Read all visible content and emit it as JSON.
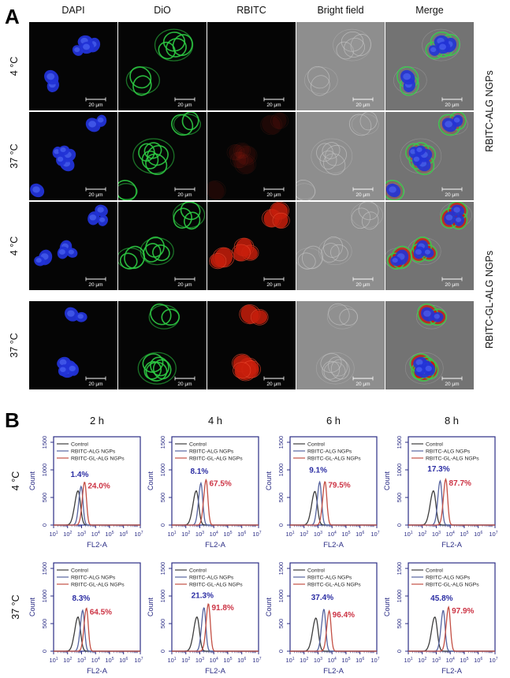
{
  "panelA": {
    "label": "A",
    "column_headers": [
      "DAPI",
      "DiO",
      "RBITC",
      "Bright field",
      "Merge"
    ],
    "row_labels": [
      "4 °C",
      "37 °C",
      "4 °C",
      "37 °C"
    ],
    "group_labels": [
      "RBITC-ALG NGPs",
      "RBITC-GL-ALG NGPs"
    ],
    "scale_bar_label": "20 μm",
    "channels": [
      "dapi",
      "dio",
      "rbitc",
      "brightfield",
      "merge"
    ],
    "rows": [
      {
        "temperature": "4 °C",
        "group": "RBITC-ALG NGPs",
        "rbitc_signal": "none"
      },
      {
        "temperature": "37 °C",
        "group": "RBITC-ALG NGPs",
        "rbitc_signal": "faint"
      },
      {
        "temperature": "4 °C",
        "group": "RBITC-GL-ALG NGPs",
        "rbitc_signal": "strong"
      },
      {
        "temperature": "37 °C",
        "group": "RBITC-GL-ALG NGPs",
        "rbitc_signal": "strong"
      }
    ],
    "colors": {
      "dapi": "#2233d6",
      "dapi_inner": "#5b74ff",
      "dio": "#2ecc44",
      "rbitc": "#c81e0c",
      "rbitc_edge": "#e8442a",
      "dark_bg": "#050505",
      "brightfield_bg": "#8e8e8e",
      "merge_bg": "#737373",
      "scale_bar": "#ffffff"
    }
  },
  "panelB": {
    "label": "B",
    "time_labels": [
      "2 h",
      "4 h",
      "6 h",
      "8 h"
    ],
    "row_labels": [
      "4 °C",
      "37 °C"
    ]
  },
  "chart_data": {
    "type": "line",
    "subtype": "flow-cytometry-histogram",
    "xlabel": "FL2-A",
    "ylabel": "Count",
    "x_scale": "log10",
    "x_range_log10": [
      1,
      7.2
    ],
    "x_tick_exponents": [
      "1",
      "2",
      "3",
      "4",
      "5",
      "6",
      "7.2"
    ],
    "y_ticks": [
      0,
      500,
      1000,
      1500
    ],
    "y_range": [
      0,
      1600
    ],
    "legend": [
      "Control",
      "RBITC-ALG NGPs",
      "RBITC-GL-ALG NGPs"
    ],
    "series_colors": {
      "Control": "#3d3d3d",
      "RBITC-ALG NGPs": "#56639f",
      "RBITC-GL-ALG NGPs": "#c34f44"
    },
    "frame_color": "#2b2d85",
    "pct_colors": {
      "blue": "#2b2da3",
      "red": "#cc3344"
    },
    "rows": [
      {
        "temperature": "4 °C",
        "plots": [
          {
            "time": "2 h",
            "pct_alg": "1.4%",
            "pct_gl": "24.0%",
            "series": [
              {
                "name": "Control",
                "peak_log10": 2.75,
                "peak_count": 620
              },
              {
                "name": "RBITC-ALG NGPs",
                "peak_log10": 2.97,
                "peak_count": 700
              },
              {
                "name": "RBITC-GL-ALG NGPs",
                "peak_log10": 3.22,
                "peak_count": 780
              }
            ]
          },
          {
            "time": "4 h",
            "pct_alg": "8.1%",
            "pct_gl": "67.5%",
            "series": [
              {
                "name": "Control",
                "peak_log10": 2.75,
                "peak_count": 620
              },
              {
                "name": "RBITC-ALG NGPs",
                "peak_log10": 3.08,
                "peak_count": 760
              },
              {
                "name": "RBITC-GL-ALG NGPs",
                "peak_log10": 3.45,
                "peak_count": 820
              }
            ]
          },
          {
            "time": "6 h",
            "pct_alg": "9.1%",
            "pct_gl": "79.5%",
            "series": [
              {
                "name": "Control",
                "peak_log10": 2.78,
                "peak_count": 610
              },
              {
                "name": "RBITC-ALG NGPs",
                "peak_log10": 3.12,
                "peak_count": 780
              },
              {
                "name": "RBITC-GL-ALG NGPs",
                "peak_log10": 3.5,
                "peak_count": 790
              }
            ]
          },
          {
            "time": "8 h",
            "pct_alg": "17.3%",
            "pct_gl": "87.7%",
            "series": [
              {
                "name": "Control",
                "peak_log10": 2.8,
                "peak_count": 620
              },
              {
                "name": "RBITC-ALG NGPs",
                "peak_log10": 3.28,
                "peak_count": 800
              },
              {
                "name": "RBITC-GL-ALG NGPs",
                "peak_log10": 3.68,
                "peak_count": 830
              }
            ]
          }
        ]
      },
      {
        "temperature": "37 °C",
        "plots": [
          {
            "time": "2 h",
            "pct_alg": "8.3%",
            "pct_gl": "64.5%",
            "series": [
              {
                "name": "Control",
                "peak_log10": 2.75,
                "peak_count": 620
              },
              {
                "name": "RBITC-ALG NGPs",
                "peak_log10": 3.08,
                "peak_count": 740
              },
              {
                "name": "RBITC-GL-ALG NGPs",
                "peak_log10": 3.35,
                "peak_count": 780
              }
            ]
          },
          {
            "time": "4 h",
            "pct_alg": "21.3%",
            "pct_gl": "91.8%",
            "series": [
              {
                "name": "Control",
                "peak_log10": 2.8,
                "peak_count": 620
              },
              {
                "name": "RBITC-ALG NGPs",
                "peak_log10": 3.3,
                "peak_count": 790
              },
              {
                "name": "RBITC-GL-ALG NGPs",
                "peak_log10": 3.62,
                "peak_count": 860
              }
            ]
          },
          {
            "time": "6 h",
            "pct_alg": "37.4%",
            "pct_gl": "96.4%",
            "series": [
              {
                "name": "Control",
                "peak_log10": 2.85,
                "peak_count": 600
              },
              {
                "name": "RBITC-ALG NGPs",
                "peak_log10": 3.42,
                "peak_count": 760
              },
              {
                "name": "RBITC-GL-ALG NGPs",
                "peak_log10": 3.8,
                "peak_count": 730
              }
            ]
          },
          {
            "time": "8 h",
            "pct_alg": "45.8%",
            "pct_gl": "97.9%",
            "series": [
              {
                "name": "Control",
                "peak_log10": 2.9,
                "peak_count": 620
              },
              {
                "name": "RBITC-ALG NGPs",
                "peak_log10": 3.5,
                "peak_count": 740
              },
              {
                "name": "RBITC-GL-ALG NGPs",
                "peak_log10": 3.88,
                "peak_count": 800
              }
            ]
          }
        ]
      }
    ]
  }
}
